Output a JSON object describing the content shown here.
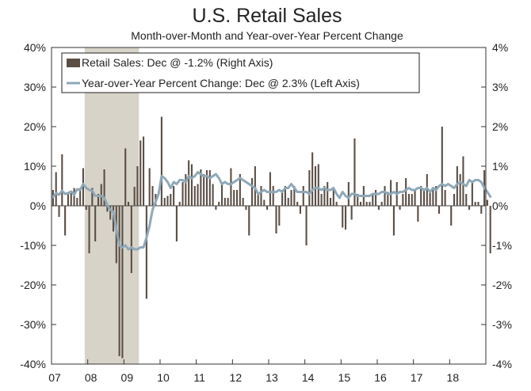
{
  "chart_data": {
    "type": "bar+line",
    "title": "U.S. Retail Sales",
    "subtitle": "Month-over-Month and Year-over-Year Percent Change",
    "left_axis": {
      "ylim": [
        -40,
        40
      ],
      "ticks": [
        40,
        30,
        20,
        10,
        0,
        -10,
        -20,
        -30,
        -40
      ],
      "tick_labels": [
        "40%",
        "30%",
        "20%",
        "10%",
        "0%",
        "-10%",
        "-20%",
        "-30%",
        "-40%"
      ]
    },
    "right_axis": {
      "ylim": [
        -4,
        4
      ],
      "ticks": [
        4,
        3,
        2,
        1,
        0,
        -1,
        -2,
        -3,
        -4
      ],
      "tick_labels": [
        "4%",
        "3%",
        "2%",
        "1%",
        "0%",
        "-1%",
        "-2%",
        "-3%",
        "-4%"
      ]
    },
    "x_axis": {
      "start": "2007-01",
      "months": 144,
      "year_labels": [
        "07",
        "08",
        "09",
        "10",
        "11",
        "12",
        "13",
        "14",
        "15",
        "16",
        "17",
        "18"
      ]
    },
    "recession": {
      "start_index": 11,
      "end_index": 29
    },
    "legend": [
      {
        "label": "Retail Sales: Dec @ -1.2% (Right Axis)",
        "color": "#5a4e45",
        "kind": "bar"
      },
      {
        "label": "Year-over-Year Percent Change: Dec @ 2.3% (Left Axis)",
        "color": "#8ea8b8",
        "kind": "line"
      }
    ],
    "series": [
      {
        "name": "Retail Sales (MoM, Right Axis)",
        "axis": "right",
        "color": "#5a4e45",
        "values": [
          0.4,
          0.85,
          -0.28,
          1.3,
          -0.75,
          0.3,
          0.35,
          0.45,
          0.2,
          0.45,
          0.95,
          -0.1,
          -1.2,
          0.45,
          -0.9,
          0.3,
          0.55,
          0.92,
          -0.15,
          -0.35,
          -0.65,
          -1.45,
          -3.8,
          -3.85,
          1.45,
          0.1,
          -1.7,
          0.48,
          1.0,
          1.65,
          1.75,
          -2.35,
          0.95,
          0.5,
          0.3,
          0.0,
          2.25,
          0.2,
          0.25,
          0.3,
          0.5,
          -0.9,
          0.1,
          0.6,
          0.8,
          1.15,
          1.05,
          0.5,
          0.55,
          0.92,
          0.8,
          0.9,
          0.9,
          0.55,
          -0.1,
          0.1,
          0.6,
          0.2,
          0.2,
          0.95,
          0.4,
          0.4,
          0.8,
          0.2,
          -0.1,
          -0.75,
          0.7,
          1.0,
          0.3,
          0.5,
          0.15,
          -0.1,
          0.85,
          0.5,
          -0.7,
          -0.5,
          0.4,
          0.5,
          0.2,
          0.4,
          0.5,
          0.1,
          -0.2,
          0.5,
          -1.0,
          0.9,
          1.35,
          1.0,
          1.05,
          0.3,
          0.5,
          0.6,
          0.2,
          0.4,
          0.1,
          0.0,
          -0.55,
          -0.6,
          0.6,
          -0.35,
          1.7,
          0.3,
          0.1,
          0.5,
          0.1,
          0.1,
          0.3,
          0.4,
          -0.1,
          0.1,
          0.5,
          0.35,
          0.65,
          -0.75,
          0.6,
          -0.1,
          0.3,
          0.7,
          0.3,
          0.3,
          0.4,
          -0.4,
          0.5,
          0.4,
          0.8,
          0.35,
          0.4,
          0.5,
          -0.2,
          2.0,
          0.4,
          0.0,
          -0.5,
          0.3,
          1.0,
          0.8,
          1.25,
          0.3,
          -0.1,
          0.6,
          0.1,
          0.1,
          -0.2,
          0.9,
          0.15,
          -1.2
        ]
      },
      {
        "name": "Year-over-Year Percent Change (Left Axis)",
        "axis": "left",
        "color": "#8ea8b8",
        "values": [
          2.2,
          3.2,
          2.8,
          3.8,
          3.0,
          3.2,
          3.6,
          2.8,
          4.2,
          4.0,
          5.5,
          4.5,
          4.0,
          3.8,
          2.5,
          2.5,
          2.5,
          2.0,
          0.2,
          -1.0,
          -1.5,
          -6.0,
          -10.0,
          -10.5,
          -10.0,
          -11.0,
          -10.5,
          -11.0,
          -11.0,
          -10.5,
          -10.5,
          -8.0,
          -5.0,
          -1.0,
          1.0,
          3.0,
          7.5,
          7.0,
          6.0,
          4.5,
          6.0,
          5.5,
          6.5,
          6.5,
          6.0,
          7.5,
          7.0,
          7.5,
          8.5,
          8.0,
          7.5,
          7.5,
          7.0,
          7.5,
          8.0,
          7.0,
          5.5,
          6.0,
          5.5,
          5.5,
          6.0,
          6.5,
          7.0,
          6.5,
          6.0,
          5.5,
          5.0,
          4.5,
          3.0,
          3.5,
          4.0,
          3.5,
          3.5,
          3.5,
          3.5,
          4.0,
          3.5,
          4.5,
          4.5,
          5.5,
          4.5,
          3.5,
          3.5,
          3.5,
          3.5,
          3.0,
          4.0,
          4.5,
          4.5,
          4.0,
          4.5,
          4.0,
          4.0,
          4.5,
          3.0,
          2.0,
          3.5,
          2.5,
          2.0,
          3.0,
          3.0,
          2.5,
          2.5,
          2.5,
          2.5,
          2.5,
          3.0,
          3.0,
          3.0,
          3.5,
          3.5,
          3.0,
          3.0,
          3.5,
          3.0,
          3.5,
          3.5,
          4.0,
          4.5,
          4.0,
          4.0,
          4.5,
          4.5,
          4.0,
          4.5,
          3.5,
          4.5,
          4.0,
          5.0,
          5.5,
          5.0,
          5.5,
          5.0,
          4.5,
          5.5,
          6.0,
          5.5,
          5.0,
          6.5,
          6.0,
          6.5,
          6.5,
          6.0,
          4.5,
          3.5,
          2.3
        ]
      }
    ]
  }
}
